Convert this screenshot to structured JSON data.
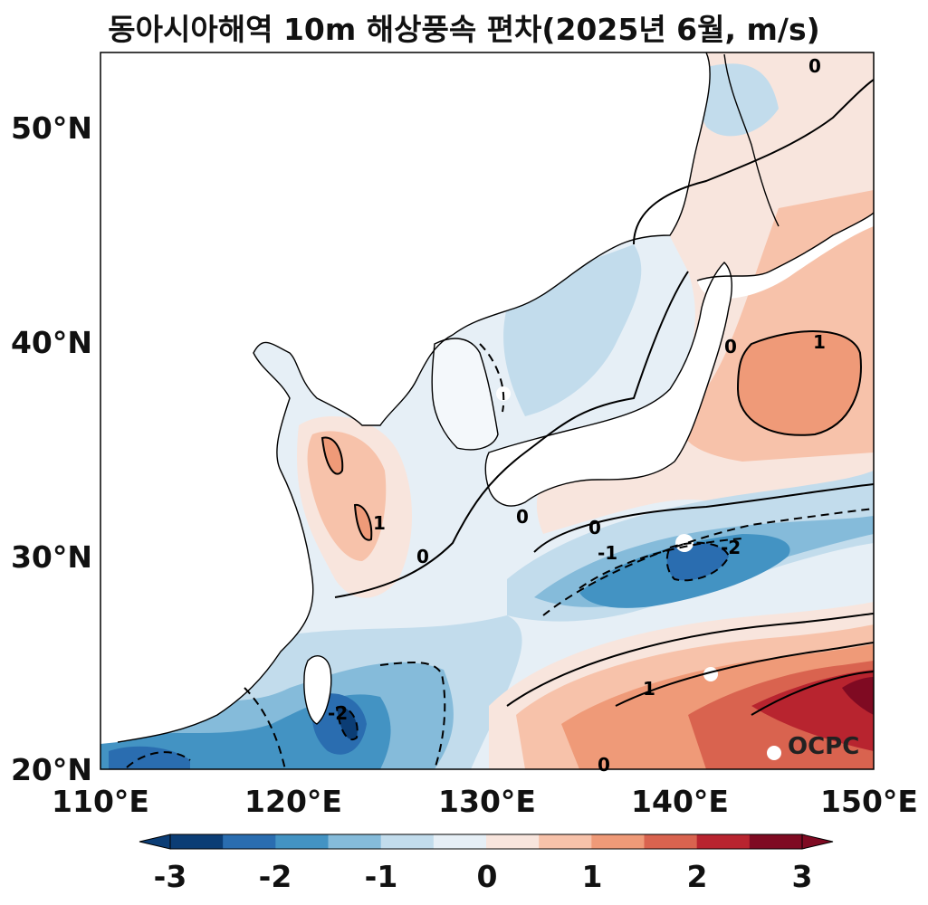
{
  "title": "동아시아해역 10m 해상풍속 편차(2025년 6월, m/s)",
  "watermark": "OCPC",
  "map": {
    "region": "East Asia seas",
    "lon_range": [
      110,
      150
    ],
    "lat_range": [
      20,
      53.5
    ],
    "x_ticks": [
      "110°E",
      "120°E",
      "130°E",
      "140°E",
      "150°E"
    ],
    "y_ticks": [
      "20°N",
      "30°N",
      "40°N",
      "50°N"
    ],
    "contour_labels": [
      "0",
      "-1",
      "-2",
      "1"
    ]
  },
  "colorbar": {
    "ticks": [
      "-3",
      "-2",
      "-1",
      "0",
      "1",
      "2",
      "3"
    ],
    "colors": [
      "#0b3d75",
      "#2a6db0",
      "#4393c3",
      "#85bbda",
      "#c2dcec",
      "#e6eff6",
      "#f8e5dd",
      "#f7c2aa",
      "#ef9a78",
      "#d9634f",
      "#b8242f",
      "#7f0a22"
    ],
    "extend": "both"
  }
}
